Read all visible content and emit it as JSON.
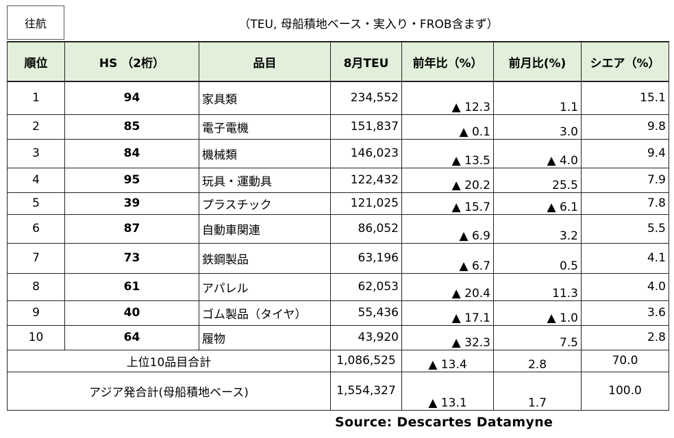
{
  "header": {
    "direction": "往航",
    "subtitle": "（TEU, 母船積地ベース・実入り・FROB含まず）"
  },
  "columns": [
    "順位",
    "HS （2桁）",
    "品目",
    "8月TEU",
    "前年比（%）",
    "前月比(%)",
    "シエア（%）"
  ],
  "rows": [
    {
      "rank": "1",
      "hs": "94",
      "item": "家具類",
      "teu": "234,552",
      "yoy": "▲ 12.3",
      "mom": "1.1",
      "share": "15.1"
    },
    {
      "rank": "2",
      "hs": "85",
      "item": "電子電機",
      "teu": "151,837",
      "yoy": "▲ 0.1",
      "mom": "3.0",
      "share": "9.8"
    },
    {
      "rank": "3",
      "hs": "84",
      "item": "機械類",
      "teu": "146,023",
      "yoy": "▲ 13.5",
      "mom": "▲ 4.0",
      "share": "9.4"
    },
    {
      "rank": "4",
      "hs": "95",
      "item": "玩具・運動具",
      "teu": "122,432",
      "yoy": "▲ 20.2",
      "mom": "25.5",
      "share": "7.9"
    },
    {
      "rank": "5",
      "hs": "39",
      "item": "プラスチック",
      "teu": "121,025",
      "yoy": "▲ 15.7",
      "mom": "▲ 6.1",
      "share": "7.8"
    },
    {
      "rank": "6",
      "hs": "87",
      "item": "自動車関連",
      "teu": "86,052",
      "yoy": "▲ 6.9",
      "mom": "3.2",
      "share": "5.5"
    },
    {
      "rank": "7",
      "hs": "73",
      "item": "鉄鋼製品",
      "teu": "63,196",
      "yoy": "▲ 6.7",
      "mom": "0.5",
      "share": "4.1"
    },
    {
      "rank": "8",
      "hs": "61",
      "item": "アパレル",
      "teu": "62,053",
      "yoy": "▲ 20.4",
      "mom": "11.3",
      "share": "4.0"
    },
    {
      "rank": "9",
      "hs": "40",
      "item": "ゴム製品（タイヤ）",
      "teu": "55,436",
      "yoy": "▲ 17.1",
      "mom": "▲ 1.0",
      "share": "3.6"
    },
    {
      "rank": "10",
      "hs": "64",
      "item": "履物",
      "teu": "43,920",
      "yoy": "▲ 32.3",
      "mom": "7.5",
      "share": "2.8"
    }
  ],
  "totals": [
    {
      "label": "上位10品目合計",
      "teu": "1,086,525",
      "yoy": "▲ 13.4",
      "mom": "2.8",
      "share": "70.0"
    },
    {
      "label": "アジア発合計(母船積地ベース)",
      "teu": "1,554,327",
      "yoy": "▲ 13.1",
      "mom": "1.7",
      "share": "100.0"
    }
  ],
  "source": "Source: Descartes Datamyne",
  "colors": {
    "header_bg": "#e2efda",
    "border": "#222222"
  }
}
